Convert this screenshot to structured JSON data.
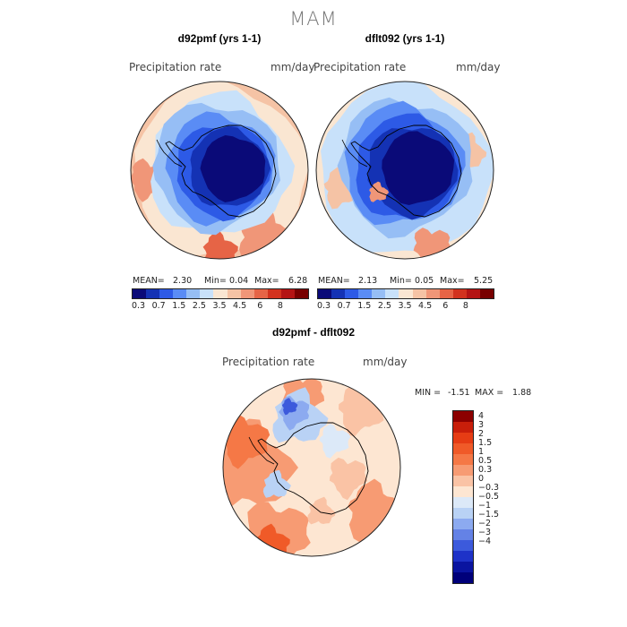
{
  "figure": {
    "title": "MAM"
  },
  "chart_data": [
    {
      "type": "heatmap",
      "projection": "south-polar-stereographic",
      "title": "d92pmf (yrs 1-1)",
      "variable": "Precipitation rate",
      "units": "mm/day",
      "stats": {
        "mean_label": "MEAN=",
        "mean": "2.30",
        "min_label": "Min=",
        "min": "0.04",
        "max_label": "Max=",
        "max": "6.28"
      },
      "colorbar": {
        "orientation": "horizontal",
        "ticks": [
          "0.3",
          "0.7",
          "1.5",
          "2.5",
          "3.5",
          "4.5",
          "6",
          "8"
        ],
        "colors": [
          "#0a0a78",
          "#1432b4",
          "#2d5ae6",
          "#5a8cf5",
          "#96bef5",
          "#c8e1fa",
          "#fae6d2",
          "#f5c3a5",
          "#f09678",
          "#e66446",
          "#d2321e",
          "#b41414",
          "#780000"
        ]
      }
    },
    {
      "type": "heatmap",
      "projection": "south-polar-stereographic",
      "title": "dflt092 (yrs 1-1)",
      "variable": "Precipitation rate",
      "units": "mm/day",
      "stats": {
        "mean_label": "MEAN=",
        "mean": "2.13",
        "min_label": "Min=",
        "min": "0.05",
        "max_label": "Max=",
        "max": "5.25"
      },
      "colorbar": {
        "orientation": "horizontal",
        "ticks": [
          "0.3",
          "0.7",
          "1.5",
          "2.5",
          "3.5",
          "4.5",
          "6",
          "8"
        ],
        "colors": [
          "#0a0a78",
          "#1432b4",
          "#2d5ae6",
          "#5a8cf5",
          "#96bef5",
          "#c8e1fa",
          "#fae6d2",
          "#f5c3a5",
          "#f09678",
          "#e66446",
          "#d2321e",
          "#b41414",
          "#780000"
        ]
      }
    },
    {
      "type": "heatmap",
      "projection": "south-polar-stereographic",
      "title": "d92pmf - dflt092",
      "variable": "Precipitation rate",
      "units": "mm/day",
      "stats": {
        "min_label": "MIN =",
        "min": "-1.51",
        "max_label": "MAX =",
        "max": "1.88"
      },
      "colorbar": {
        "orientation": "vertical",
        "ticks": [
          "4",
          "3",
          "2",
          "1.5",
          "1",
          "0.5",
          "0.3",
          "0",
          "−0.3",
          "−0.5",
          "−1",
          "−1.5",
          "−2",
          "−3",
          "−4"
        ],
        "colors": [
          "#8c0000",
          "#c81e0a",
          "#e63c14",
          "#f05a28",
          "#f57846",
          "#f79b73",
          "#fac3a5",
          "#fde6d2",
          "#dce9f8",
          "#b9d2f5",
          "#8caaf0",
          "#6482e6",
          "#3c5adc",
          "#1e32c8",
          "#0a14a0",
          "#00007a"
        ]
      }
    }
  ]
}
